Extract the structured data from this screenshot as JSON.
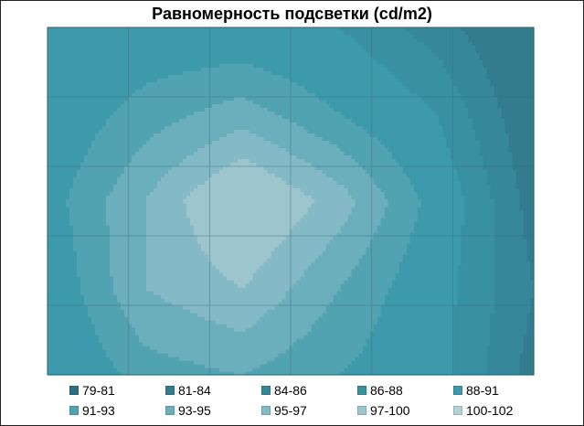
{
  "chart_data": {
    "type": "heatmap",
    "subtype": "contour",
    "title": "Равномерность подсветки (cd/m2)",
    "unit": "cd/m2",
    "grid": true,
    "legend_position": "bottom",
    "grid_columns": 6,
    "grid_rows": 5,
    "values": [
      [
        88,
        89,
        89,
        88,
        85,
        81
      ],
      [
        89,
        92,
        94,
        91,
        88,
        82
      ],
      [
        90,
        95,
        100,
        96,
        90,
        83
      ],
      [
        89,
        95,
        97,
        93,
        89,
        84
      ],
      [
        88,
        92,
        93,
        91,
        89,
        83
      ]
    ],
    "bands": [
      {
        "label": "79-81",
        "color": "#2e6e80"
      },
      {
        "label": "81-84",
        "color": "#327c8e"
      },
      {
        "label": "84-86",
        "color": "#358799"
      },
      {
        "label": "86-88",
        "color": "#3890a1"
      },
      {
        "label": "88-91",
        "color": "#3c9aab"
      },
      {
        "label": "91-93",
        "color": "#52a3b2"
      },
      {
        "label": "93-95",
        "color": "#6bafbc"
      },
      {
        "label": "95-97",
        "color": "#84bac5"
      },
      {
        "label": "97-100",
        "color": "#9dc5ce"
      },
      {
        "label": "100-102",
        "color": "#b3d0d7"
      }
    ],
    "band_edges": [
      79,
      81,
      84,
      86,
      88,
      91,
      93,
      95,
      97,
      100,
      102
    ]
  }
}
